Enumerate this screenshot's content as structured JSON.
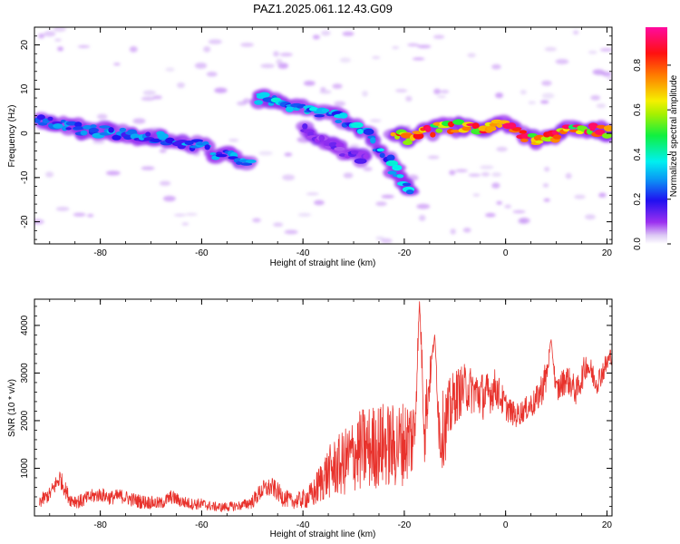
{
  "figure_title": "PAZ1.2025.061.12.43.G09",
  "chart_data": [
    {
      "type": "heatmap",
      "title": "PAZ1.2025.061.12.43.G09",
      "xlabel": "Height of straight line (km)",
      "ylabel": "Frequency (Hz)",
      "xlim": [
        -93,
        21
      ],
      "ylim": [
        -25,
        24
      ],
      "xticks": [
        -80,
        -60,
        -40,
        -20,
        0,
        20
      ],
      "yticks": [
        -20,
        -10,
        0,
        10,
        20
      ],
      "colorbar": {
        "label": "Normalized spectral amplitude",
        "range": [
          0.0,
          0.97
        ],
        "ticks": [
          0.0,
          0.2,
          0.4,
          0.6,
          0.8
        ],
        "colormap": "hsv-reversed (white/lavender low, purple, blue, cyan, green, yellow, orange, red, pink high)"
      },
      "ridges": [
        {
          "name": "ridge-1",
          "points": [
            [
              -92,
              3
            ],
            [
              -88,
              2
            ],
            [
              -84,
              1
            ],
            [
              -80,
              0.5
            ],
            [
              -76,
              0
            ],
            [
              -72,
              -1
            ],
            [
              -68,
              -1
            ],
            [
              -64,
              -2
            ],
            [
              -60,
              -3
            ],
            [
              -56,
              -5
            ],
            [
              -52,
              -6
            ],
            [
              -50,
              -7
            ]
          ],
          "amplitude": 0.3
        },
        {
          "name": "ridge-2",
          "points": [
            [
              -49,
              8
            ],
            [
              -45,
              7.5
            ],
            [
              -42,
              6
            ],
            [
              -38,
              5
            ],
            [
              -35,
              4.5
            ],
            [
              -32,
              3
            ],
            [
              -28,
              1
            ],
            [
              -26,
              -2
            ],
            [
              -24,
              -5
            ],
            [
              -22,
              -8
            ],
            [
              -20,
              -11
            ],
            [
              -18,
              -14
            ]
          ],
          "amplitude": 0.35
        },
        {
          "name": "ridge-3",
          "points": [
            [
              -40,
              1
            ],
            [
              -37,
              -1
            ],
            [
              -34,
              -3
            ],
            [
              -30,
              -5
            ],
            [
              -27,
              -6
            ]
          ],
          "amplitude": 0.15
        },
        {
          "name": "ridge-4",
          "points": [
            [
              -22,
              0
            ],
            [
              -19,
              -1
            ],
            [
              -15,
              0.5
            ],
            [
              -12,
              1.5
            ],
            [
              -8,
              1.5
            ],
            [
              -4,
              1
            ],
            [
              0,
              2
            ],
            [
              3,
              0
            ],
            [
              6,
              -2
            ],
            [
              9,
              -1
            ],
            [
              12,
              1
            ],
            [
              16,
              1
            ],
            [
              21,
              0
            ]
          ],
          "amplitude": 0.85
        }
      ]
    },
    {
      "type": "line",
      "xlabel": "Height of straight line (km)",
      "ylabel": "SNR (10 * v/v)",
      "xlim": [
        -93,
        21
      ],
      "ylim": [
        0,
        4550
      ],
      "xticks": [
        -80,
        -60,
        -40,
        -20,
        0,
        20
      ],
      "yticks": [
        1000,
        2000,
        3000,
        4000
      ],
      "line_color": "#e8322c",
      "series": [
        {
          "x": [
            -92,
            -90,
            -88,
            -86,
            -84,
            -82,
            -80,
            -78,
            -76,
            -74,
            -72,
            -70,
            -68,
            -66,
            -64,
            -62,
            -60,
            -58,
            -56,
            -54,
            -52,
            -50,
            -48,
            -46,
            -44,
            -42,
            -40,
            -38,
            -36,
            -34,
            -32,
            -30,
            -28,
            -26,
            -24,
            -22,
            -20,
            -18,
            -17,
            -16,
            -14,
            -13,
            -12,
            -10,
            -8,
            -6,
            -4,
            -2,
            0,
            2,
            4,
            6,
            8,
            9,
            10,
            12,
            14,
            16,
            18,
            20,
            21
          ],
          "y": [
            300,
            450,
            800,
            350,
            300,
            400,
            450,
            380,
            420,
            350,
            300,
            280,
            260,
            400,
            300,
            250,
            250,
            200,
            180,
            200,
            220,
            300,
            550,
            600,
            400,
            300,
            350,
            450,
            800,
            1000,
            1100,
            1300,
            1400,
            1450,
            1500,
            1450,
            1550,
            1700,
            4500,
            1900,
            3800,
            1700,
            1900,
            2500,
            2700,
            2600,
            2500,
            2700,
            2300,
            2100,
            2250,
            2400,
            2900,
            3700,
            2600,
            2900,
            2600,
            3200,
            2800,
            3200,
            3400
          ],
          "noise_amplitude": [
            150,
            150,
            200,
            150,
            150,
            150,
            150,
            150,
            150,
            150,
            150,
            140,
            130,
            150,
            130,
            120,
            120,
            100,
            100,
            100,
            100,
            150,
            200,
            200,
            200,
            150,
            200,
            300,
            500,
            600,
            700,
            800,
            900,
            900,
            900,
            900,
            900,
            900,
            0,
            900,
            0,
            800,
            800,
            600,
            500,
            500,
            500,
            400,
            300,
            250,
            250,
            300,
            400,
            0,
            300,
            300,
            300,
            300,
            250,
            250,
            200
          ]
        }
      ]
    }
  ]
}
